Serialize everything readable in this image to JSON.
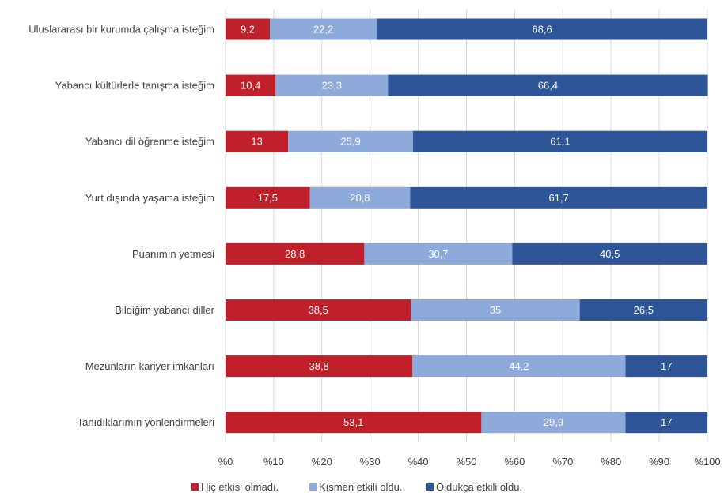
{
  "chart_data": {
    "type": "bar",
    "orientation": "horizontal",
    "stacked": true,
    "categories": [
      "Uluslararası bir kurumda çalışma isteğim",
      "Yabancı kültürlerle tanışma isteğim",
      "Yabancı dil öğrenme isteğim",
      "Yurt dışında yaşama isteğim",
      "Puanımın yetmesi",
      "Bildiğim yabancı diller",
      "Mezunların kariyer imkanları",
      "Tanıdıklarımın yönlendirmeleri"
    ],
    "series": [
      {
        "name": "Hiç etkisi olmadı.",
        "color": "#c0202a",
        "values": [
          9.2,
          10.4,
          13,
          17.5,
          28.8,
          38.5,
          38.8,
          53.1
        ],
        "labels": [
          "9,2",
          "10,4",
          "13",
          "17,5",
          "28,8",
          "38,5",
          "38,8",
          "53,1"
        ]
      },
      {
        "name": "Kısmen etkili oldu.",
        "color": "#8eaadb",
        "values": [
          22.2,
          23.3,
          25.9,
          20.8,
          30.7,
          35,
          44.2,
          29.9
        ],
        "labels": [
          "22,2",
          "23,3",
          "25,9",
          "20,8",
          "30,7",
          "35",
          "44,2",
          "29,9"
        ]
      },
      {
        "name": "Oldukça etkili oldu.",
        "color": "#2e5597",
        "values": [
          68.6,
          66.4,
          61.1,
          61.7,
          40.5,
          26.5,
          17,
          17
        ],
        "labels": [
          "68,6",
          "66,4",
          "61,1",
          "61,7",
          "40,5",
          "26,5",
          "17",
          "17"
        ]
      }
    ],
    "x_ticks": [
      "%0",
      "%10",
      "%20",
      "%30",
      "%40",
      "%50",
      "%60",
      "%70",
      "%80",
      "%90",
      "%100"
    ],
    "xlim": [
      0,
      100
    ],
    "grid": "vertical",
    "legend": "bottom"
  }
}
